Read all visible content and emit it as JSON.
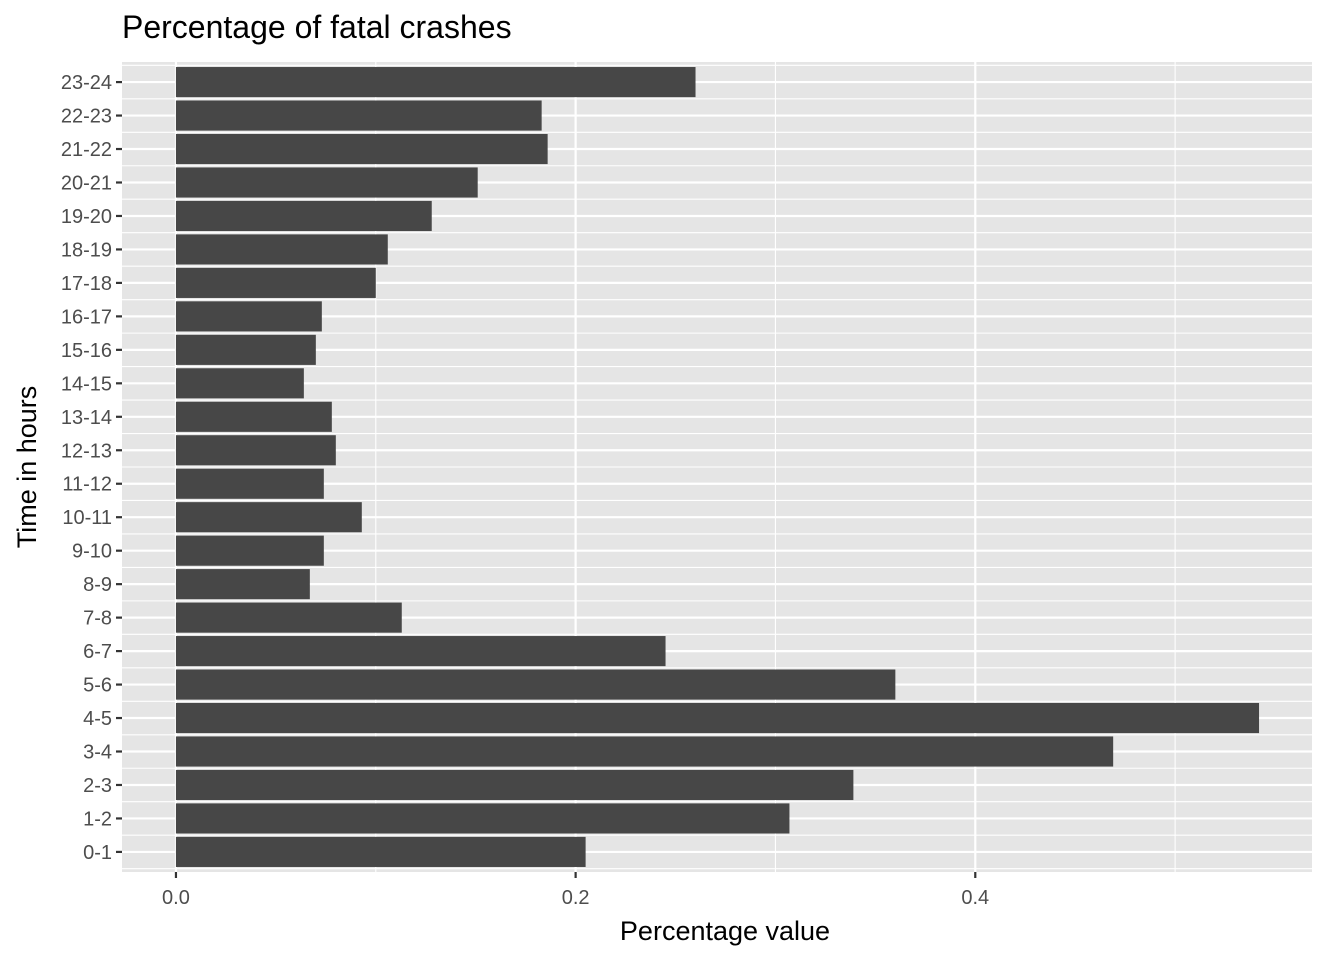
{
  "chart_data": {
    "type": "bar",
    "orientation": "horizontal",
    "title": "Percentage of fatal crashes",
    "xlabel": "Percentage value",
    "ylabel": "Time in hours",
    "categories": [
      "0-1",
      "1-2",
      "2-3",
      "3-4",
      "4-5",
      "5-6",
      "6-7",
      "7-8",
      "8-9",
      "9-10",
      "10-11",
      "11-12",
      "12-13",
      "13-14",
      "14-15",
      "15-16",
      "16-17",
      "17-18",
      "18-19",
      "19-20",
      "20-21",
      "21-22",
      "22-23",
      "23-24"
    ],
    "values": [
      0.205,
      0.307,
      0.339,
      0.469,
      0.542,
      0.36,
      0.245,
      0.113,
      0.067,
      0.074,
      0.093,
      0.074,
      0.08,
      0.078,
      0.064,
      0.07,
      0.073,
      0.1,
      0.106,
      0.128,
      0.151,
      0.186,
      0.183,
      0.26
    ],
    "xlim": [
      -0.027,
      0.5685
    ],
    "xticks": [
      0.0,
      0.2,
      0.4
    ],
    "xtick_labels": [
      "0.0",
      "0.2",
      "0.4"
    ],
    "grid": true,
    "colors": {
      "bar": "#474747",
      "panel": "#e5e5e5",
      "grid": "#ffffff",
      "tick_text": "#4d4d4d"
    }
  }
}
